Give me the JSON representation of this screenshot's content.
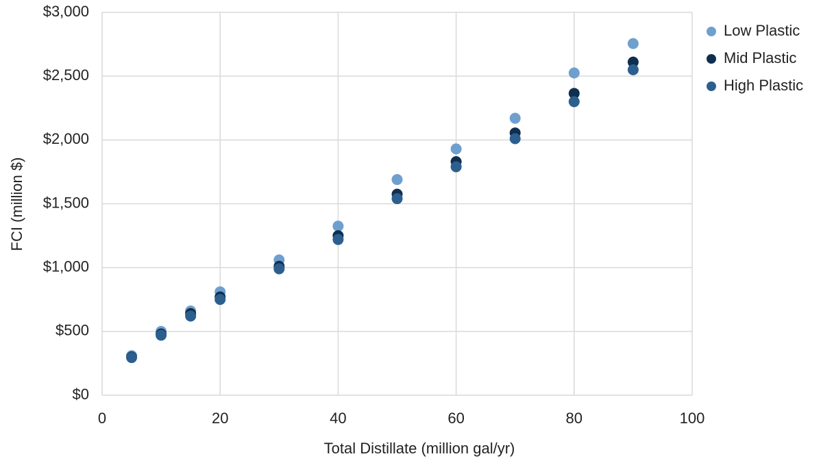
{
  "chart_data": {
    "type": "scatter",
    "x_label": "Total Distillate (million gal/yr)",
    "y_label": "FCI (million $)",
    "x": [
      5,
      10,
      15,
      20,
      30,
      40,
      50,
      60,
      70,
      80,
      90
    ],
    "series": [
      {
        "name": "Low Plastic",
        "color": "#6e9fcf",
        "values": [
          310,
          500,
          660,
          810,
          1060,
          1325,
          1690,
          1930,
          2170,
          2525,
          2755
        ]
      },
      {
        "name": "Mid Plastic",
        "color": "#0f2f50",
        "values": [
          300,
          480,
          640,
          770,
          1010,
          1250,
          1575,
          1830,
          2055,
          2365,
          2610
        ]
      },
      {
        "name": "High Plastic",
        "color": "#2c5f8e",
        "values": [
          295,
          470,
          620,
          750,
          990,
          1220,
          1540,
          1790,
          2010,
          2300,
          2550
        ]
      }
    ],
    "xlim": [
      0,
      100
    ],
    "xticks": [
      0,
      20,
      40,
      60,
      80,
      100
    ],
    "ylim": [
      0,
      3000
    ],
    "yticks": [
      {
        "value": 0,
        "label": "$0"
      },
      {
        "value": 500,
        "label": "$500"
      },
      {
        "value": 1000,
        "label": "$1,000"
      },
      {
        "value": 1500,
        "label": "$1,500"
      },
      {
        "value": 2000,
        "label": "$2,000"
      },
      {
        "value": 2500,
        "label": "$2,500"
      },
      {
        "value": 3000,
        "label": "$3,000"
      }
    ],
    "grid": true,
    "legend": "right"
  }
}
